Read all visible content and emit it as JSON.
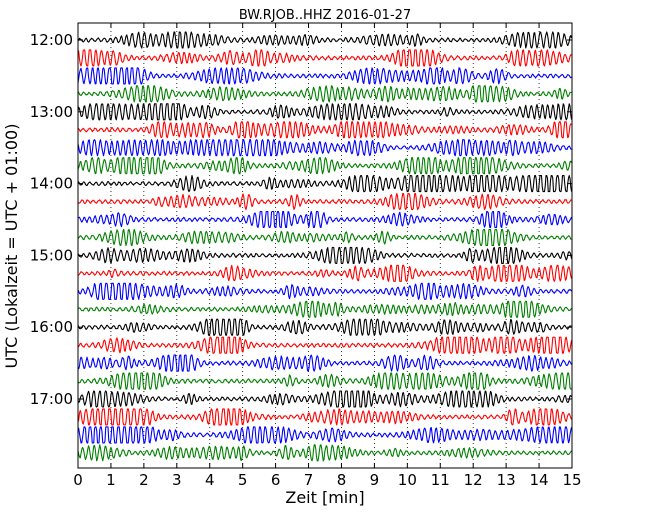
{
  "chart_data": {
    "type": "line",
    "title": "BW.RJOB..HHZ 2016-01-27",
    "xlabel": "Zeit  [min]",
    "ylabel": "UTC (Lokalzeit = UTC + 01:00)",
    "xlim": [
      0,
      15
    ],
    "x_ticks": [
      0,
      1,
      2,
      3,
      4,
      5,
      6,
      7,
      8,
      9,
      10,
      11,
      12,
      13,
      14,
      15
    ],
    "y_tick_labels": [
      "12:00",
      "13:00",
      "14:00",
      "15:00",
      "16:00",
      "17:00"
    ],
    "trace_interval_minutes": 15,
    "start_time": "12:00",
    "trace_count": 24,
    "grid": "vertical dotted",
    "colors": [
      "#000000",
      "#ff0000",
      "#0000ff",
      "#008000"
    ],
    "series": [
      {
        "start": "12:00",
        "color": "#000000"
      },
      {
        "start": "12:15",
        "color": "#ff0000"
      },
      {
        "start": "12:30",
        "color": "#0000ff"
      },
      {
        "start": "12:45",
        "color": "#008000"
      },
      {
        "start": "13:00",
        "color": "#000000"
      },
      {
        "start": "13:15",
        "color": "#ff0000"
      },
      {
        "start": "13:30",
        "color": "#0000ff"
      },
      {
        "start": "13:45",
        "color": "#008000"
      },
      {
        "start": "14:00",
        "color": "#000000"
      },
      {
        "start": "14:15",
        "color": "#ff0000"
      },
      {
        "start": "14:30",
        "color": "#0000ff"
      },
      {
        "start": "14:45",
        "color": "#008000"
      },
      {
        "start": "15:00",
        "color": "#000000"
      },
      {
        "start": "15:15",
        "color": "#ff0000"
      },
      {
        "start": "15:30",
        "color": "#0000ff"
      },
      {
        "start": "15:45",
        "color": "#008000"
      },
      {
        "start": "16:00",
        "color": "#000000"
      },
      {
        "start": "16:15",
        "color": "#ff0000"
      },
      {
        "start": "16:30",
        "color": "#0000ff"
      },
      {
        "start": "16:45",
        "color": "#008000"
      },
      {
        "start": "17:00",
        "color": "#000000"
      },
      {
        "start": "17:15",
        "color": "#ff0000"
      },
      {
        "start": "17:30",
        "color": "#0000ff"
      },
      {
        "start": "17:45",
        "color": "#008000"
      }
    ]
  }
}
